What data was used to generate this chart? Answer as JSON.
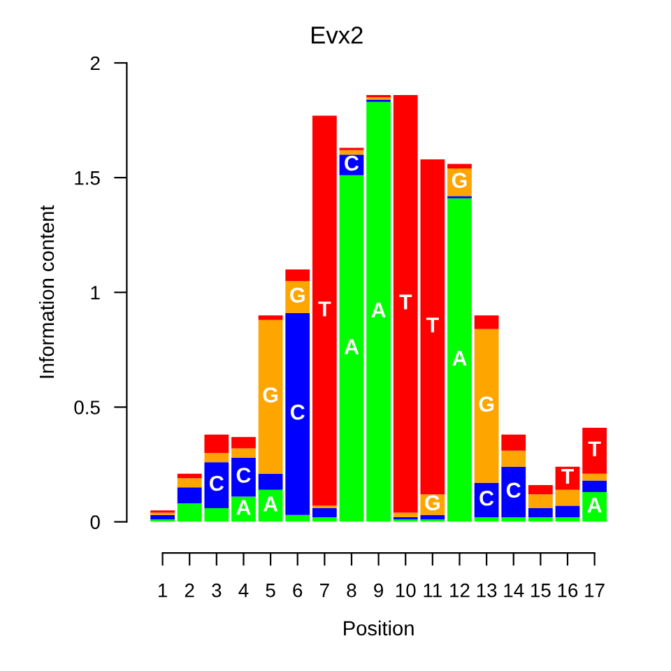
{
  "chart_data": {
    "type": "bar",
    "title": "Evx2",
    "xlabel": "Position",
    "ylabel": "Information content",
    "categories": [
      "1",
      "2",
      "3",
      "4",
      "5",
      "6",
      "7",
      "8",
      "9",
      "10",
      "11",
      "12",
      "13",
      "14",
      "15",
      "16",
      "17"
    ],
    "stacked": true,
    "ylim": [
      0,
      2
    ],
    "yticks": [
      0,
      0.5,
      1,
      1.5,
      2
    ],
    "series": [
      {
        "name": "A",
        "color": "#00ff00",
        "values": [
          0.01,
          0.08,
          0.06,
          0.11,
          0.14,
          0.03,
          0.02,
          1.51,
          1.83,
          0.01,
          0.01,
          1.41,
          0.02,
          0.02,
          0.02,
          0.02,
          0.13
        ]
      },
      {
        "name": "C",
        "color": "#0000ff",
        "values": [
          0.02,
          0.07,
          0.2,
          0.17,
          0.07,
          0.88,
          0.04,
          0.09,
          0.01,
          0.01,
          0.02,
          0.01,
          0.15,
          0.22,
          0.04,
          0.05,
          0.05
        ]
      },
      {
        "name": "G",
        "color": "#ffa500",
        "values": [
          0.01,
          0.04,
          0.04,
          0.04,
          0.67,
          0.14,
          0.01,
          0.02,
          0.01,
          0.02,
          0.09,
          0.12,
          0.67,
          0.07,
          0.06,
          0.07,
          0.03
        ]
      },
      {
        "name": "T",
        "color": "#ff0000",
        "values": [
          0.01,
          0.02,
          0.08,
          0.05,
          0.02,
          0.05,
          1.7,
          0.01,
          0.01,
          1.82,
          1.46,
          0.02,
          0.06,
          0.07,
          0.04,
          0.1,
          0.2
        ]
      }
    ]
  }
}
